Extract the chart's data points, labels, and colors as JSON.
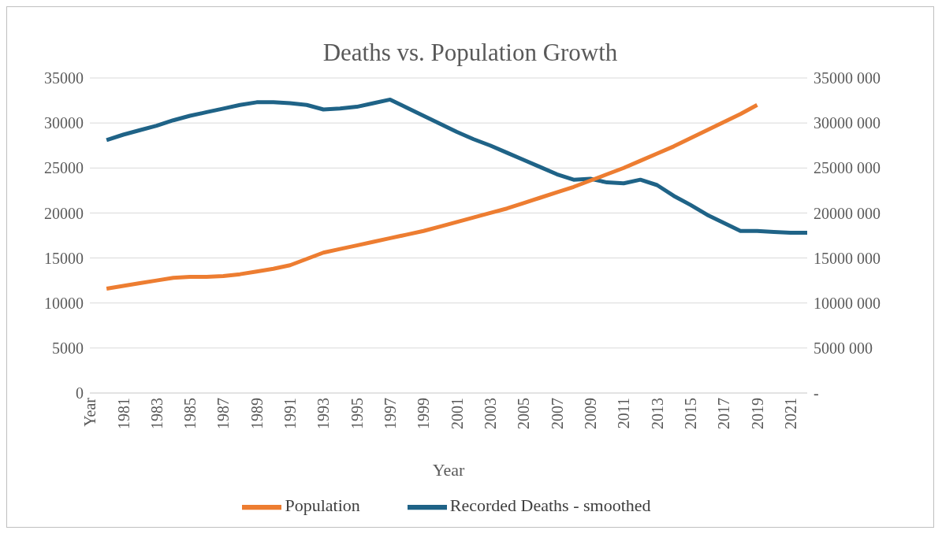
{
  "chart_data": {
    "type": "line",
    "title": "Deaths vs. Population Growth",
    "xlabel": "Year",
    "categories": [
      "Year",
      null,
      "1981",
      null,
      "1983",
      null,
      "1985",
      null,
      "1987",
      null,
      "1989",
      null,
      "1991",
      null,
      "1993",
      null,
      "1995",
      null,
      "1997",
      null,
      "1999",
      null,
      "2001",
      null,
      "2003",
      null,
      "2005",
      null,
      "2007",
      null,
      "2009",
      null,
      "2011",
      null,
      "2013",
      null,
      "2015",
      null,
      "2017",
      null,
      "2019",
      null,
      "2021",
      null
    ],
    "series": [
      {
        "name": "Recorded Deaths - smoothed",
        "color": "#1f6387",
        "values": [
          null,
          28100,
          28700,
          29200,
          29700,
          30300,
          30800,
          31200,
          31600,
          32000,
          32300,
          32300,
          32200,
          32000,
          31500,
          31600,
          31800,
          32200,
          32600,
          31700,
          30800,
          29900,
          29000,
          28200,
          27500,
          26700,
          25900,
          25100,
          24300,
          23700,
          23800,
          23400,
          23300,
          23700,
          23100,
          21900,
          20900,
          19800,
          18900,
          18000,
          18000,
          17900,
          17800,
          17800
        ]
      },
      {
        "name": "Population",
        "color": "#ed7d31",
        "axis": "y2",
        "values": [
          null,
          11600000,
          11900000,
          12200000,
          12500000,
          12800000,
          12900000,
          12900000,
          13000000,
          13200000,
          13500000,
          13800000,
          14200000,
          14900000,
          15600000,
          16000000,
          16400000,
          16800000,
          17200000,
          17600000,
          18000000,
          18500000,
          19000000,
          19500000,
          20000000,
          20500000,
          21100000,
          21700000,
          22300000,
          22900000,
          23600000,
          24300000,
          25000000,
          25800000,
          26600000,
          27400000,
          28300000,
          29200000,
          30100000,
          31000000,
          32000000,
          null,
          null,
          null
        ]
      }
    ],
    "ylim": [
      0,
      35000
    ],
    "yticks": [
      0,
      5000,
      10000,
      15000,
      20000,
      25000,
      30000,
      35000
    ],
    "y2lim": [
      0,
      35000000
    ],
    "y2ticks": [
      {
        "value": 0,
        "label": "-"
      },
      {
        "value": 5000000,
        "label": "5000 000"
      },
      {
        "value": 10000000,
        "label": "10000 000"
      },
      {
        "value": 15000000,
        "label": "15000 000"
      },
      {
        "value": 20000000,
        "label": "20000 000"
      },
      {
        "value": 25000000,
        "label": "25000 000"
      },
      {
        "value": 30000000,
        "label": "30000 000"
      },
      {
        "value": 35000000,
        "label": "35000 000"
      }
    ],
    "grid": "y",
    "legend": "bottom",
    "marker": "none",
    "line_style": "solid"
  }
}
